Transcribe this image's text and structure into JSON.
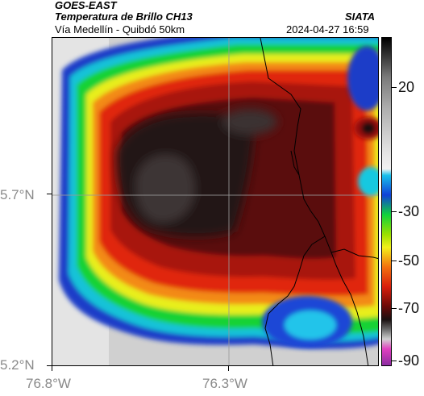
{
  "header": {
    "satellite": "GOES-EAST",
    "product": "Temperatura de Brillo CH13",
    "source": "SIATA",
    "region": "Vía Medellín - Quibdó 50km",
    "datetime": "2024-04-27 16:59"
  },
  "axes": {
    "lat_ticks": [
      "5.7°N",
      "5.2°N"
    ],
    "lon_ticks": [
      "76.8°W",
      "76.3°W"
    ]
  },
  "colorbar": {
    "tick_labels": [
      "20",
      "-30",
      "-50",
      "-70",
      "-90"
    ]
  },
  "colors": {
    "coldest_core": "#1a1010",
    "deep_red": "#6b0a08",
    "red": "#d81e0c",
    "orange": "#f2700e",
    "yellow": "#f2f01a",
    "green": "#10d23a",
    "blue": "#1040d8",
    "cyan": "#18c0ea",
    "warm_gray": "#d8d8d8"
  }
}
